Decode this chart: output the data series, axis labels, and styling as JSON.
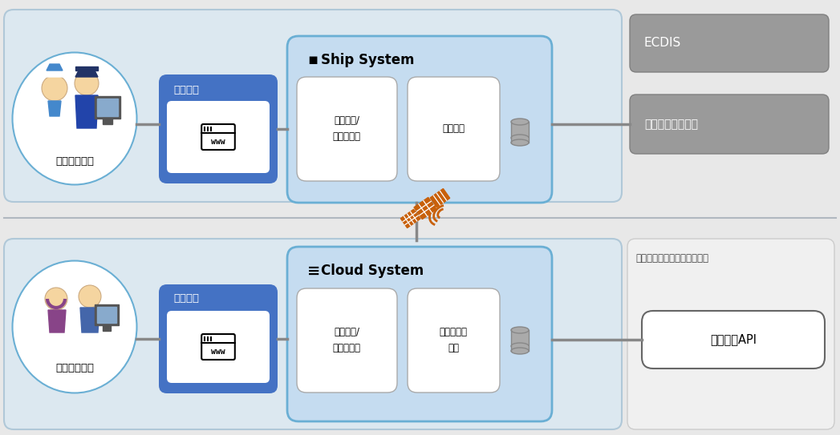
{
  "bg_color": "#e8e8e8",
  "top_panel_bg": "#dce8f0",
  "top_panel_border": "#a8c8d8",
  "bottom_panel_bg": "#dce8f0",
  "bottom_panel_border": "#a8c8d8",
  "internet_bg": "#f0f0f0",
  "internet_border": "#cccccc",
  "ship_system_bg": "#c5dcf0",
  "ship_system_border": "#6aafd4",
  "cloud_system_bg": "#c5dcf0",
  "cloud_system_border": "#6aafd4",
  "browser_blue": "#4472c4",
  "browser_blue_light": "#5585d5",
  "white": "#ffffff",
  "gray_box": "#999999",
  "gray_box_border": "#888888",
  "line_color": "#888888",
  "circle_border": "#6aafd4",
  "orange_sat": "#c8600a",
  "white_box_border": "#aaaaaa",
  "ship_user_label": "船側ユーザー",
  "land_user_label": "陸側ユーザー",
  "browser_label": "ブラウザ",
  "title_ship": "Ship System",
  "title_cloud": "Cloud System",
  "nav_ship": "航路探索/\nマップ表示",
  "device_comm": "機器通信",
  "nav_cloud": "航路探索/\nマップ表示",
  "weather_collect": "気象データ\n収集",
  "ecdis": "ECDIS",
  "engine": "エンジン等の機器",
  "internet_title": "インターネット上のサービス",
  "weather_api": "気象配信API"
}
